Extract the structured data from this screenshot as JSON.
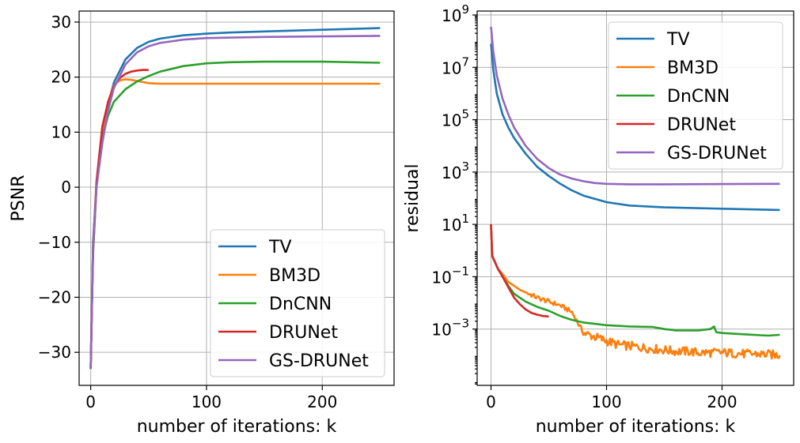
{
  "chart_data": [
    {
      "type": "line",
      "xlabel": "number of iterations: k",
      "ylabel": "PSNR",
      "xlim": [
        -10,
        262
      ],
      "ylim": [
        -36,
        32
      ],
      "yscale": "linear",
      "grid": true,
      "legend": "lower-right",
      "xticks": [
        0,
        100,
        200
      ],
      "yticks": [
        30,
        20,
        10,
        0,
        -10,
        -20,
        -30
      ],
      "xtick_labels": [
        "0",
        "100",
        "200"
      ],
      "ytick_labels": [
        "30",
        "20",
        "10",
        "0",
        "−10",
        "−20",
        "−30"
      ],
      "series": [
        {
          "name": "TV",
          "color": "#1f77b4",
          "x": [
            0,
            2,
            5,
            10,
            15,
            20,
            30,
            40,
            50,
            60,
            80,
            100,
            120,
            150,
            200,
            250
          ],
          "y": [
            -33,
            -10,
            0,
            9,
            15,
            19,
            23.2,
            25.3,
            26.4,
            27.0,
            27.6,
            27.9,
            28.1,
            28.3,
            28.6,
            28.9
          ]
        },
        {
          "name": "BM3D",
          "color": "#ff7f0e",
          "x": [
            0,
            2,
            5,
            10,
            15,
            20,
            25,
            30,
            35,
            40,
            45,
            50,
            60,
            80,
            100,
            150,
            200,
            250
          ],
          "y": [
            -33,
            -12,
            0,
            10,
            15.5,
            18.5,
            19.4,
            19.6,
            19.5,
            19.3,
            19.1,
            18.9,
            18.8,
            18.8,
            18.8,
            18.8,
            18.8,
            18.8
          ],
          "noisy": false
        },
        {
          "name": "DnCNN",
          "color": "#2ca02c",
          "x": [
            0,
            2,
            5,
            10,
            15,
            20,
            30,
            40,
            50,
            60,
            80,
            100,
            120,
            150,
            170,
            200,
            250
          ],
          "y": [
            -33,
            -12,
            0,
            9,
            13,
            15.5,
            17.8,
            19.2,
            20.2,
            21.0,
            22.0,
            22.5,
            22.7,
            22.8,
            22.8,
            22.8,
            22.6
          ]
        },
        {
          "name": "DRUNet",
          "color": "#d62728",
          "x": [
            0,
            2,
            5,
            10,
            15,
            20,
            25,
            30,
            35,
            40,
            45,
            50
          ],
          "y": [
            -33,
            -11,
            1,
            11,
            15.5,
            18.3,
            19.8,
            20.6,
            21.0,
            21.2,
            21.3,
            21.3
          ]
        },
        {
          "name": "GS-DRUNet",
          "color": "#9467bd",
          "x": [
            0,
            2,
            5,
            10,
            15,
            20,
            30,
            40,
            50,
            60,
            80,
            100,
            150,
            200,
            250
          ],
          "y": [
            -33,
            -11,
            0,
            8,
            14,
            18,
            22.3,
            24.5,
            25.6,
            26.2,
            26.8,
            27.1,
            27.3,
            27.4,
            27.5
          ]
        }
      ]
    },
    {
      "type": "line",
      "xlabel": "number of iterations: k",
      "ylabel": "residual",
      "xlim": [
        -12,
        262
      ],
      "ylim_log10": [
        -5.15,
        9.15
      ],
      "yscale": "log",
      "grid": true,
      "legend": "upper-right",
      "xticks": [
        0,
        100,
        200
      ],
      "xtick_labels": [
        "0",
        "100",
        "200"
      ],
      "ytick_exponents": [
        9,
        7,
        5,
        3,
        1,
        -1,
        -3
      ],
      "ytick_base": "10",
      "series": [
        {
          "name": "TV",
          "color": "#1f77b4",
          "x": [
            0,
            2,
            5,
            10,
            15,
            20,
            30,
            40,
            50,
            60,
            70,
            80,
            100,
            120,
            150,
            200,
            250
          ],
          "log10y": [
            7.9,
            6.9,
            6.0,
            5.2,
            4.7,
            4.3,
            3.7,
            3.2,
            2.85,
            2.55,
            2.3,
            2.1,
            1.85,
            1.72,
            1.65,
            1.6,
            1.55
          ]
        },
        {
          "name": "BM3D",
          "color": "#ff7f0e",
          "x": [
            0,
            1,
            2,
            4,
            6,
            10,
            15,
            20,
            25,
            30,
            40,
            50,
            60,
            70,
            80,
            90,
            100,
            110,
            120,
            130,
            140,
            150,
            160,
            170,
            180,
            190,
            200,
            210,
            220,
            230,
            240,
            250
          ],
          "log10y": [
            1.0,
            -0.2,
            -0.3,
            -0.5,
            -0.7,
            -0.9,
            -1.2,
            -1.35,
            -1.5,
            -1.6,
            -1.8,
            -1.95,
            -2.1,
            -2.35,
            -3.15,
            -3.3,
            -3.45,
            -3.6,
            -3.65,
            -3.7,
            -3.75,
            -3.8,
            -3.85,
            -3.85,
            -3.9,
            -3.9,
            -3.9,
            -3.92,
            -3.95,
            -3.95,
            -3.97,
            -4.0
          ],
          "noisy": true
        },
        {
          "name": "DnCNN",
          "color": "#2ca02c",
          "x": [
            0,
            1,
            2,
            4,
            6,
            10,
            15,
            20,
            30,
            40,
            50,
            60,
            70,
            80,
            90,
            100,
            120,
            140,
            150,
            160,
            180,
            190,
            193,
            195,
            200,
            220,
            240,
            250
          ],
          "log10y": [
            1.0,
            -0.2,
            -0.3,
            -0.5,
            -0.7,
            -1.0,
            -1.35,
            -1.65,
            -1.95,
            -2.15,
            -2.3,
            -2.5,
            -2.65,
            -2.75,
            -2.8,
            -2.85,
            -2.9,
            -2.92,
            -3.0,
            -3.05,
            -3.05,
            -3.0,
            -2.9,
            -3.12,
            -3.15,
            -3.2,
            -3.25,
            -3.22
          ]
        },
        {
          "name": "DRUNet",
          "color": "#d62728",
          "x": [
            0,
            1,
            2,
            4,
            6,
            10,
            15,
            20,
            25,
            30,
            35,
            40,
            45,
            50
          ],
          "log10y": [
            1.0,
            -0.2,
            -0.3,
            -0.5,
            -0.7,
            -1.0,
            -1.4,
            -1.8,
            -2.05,
            -2.25,
            -2.38,
            -2.45,
            -2.5,
            -2.52
          ]
        },
        {
          "name": "GS-DRUNet",
          "color": "#9467bd",
          "x": [
            0,
            2,
            5,
            10,
            15,
            20,
            30,
            40,
            50,
            60,
            70,
            80,
            90,
            100,
            120,
            150,
            200,
            250
          ],
          "log10y": [
            8.55,
            7.6,
            6.7,
            5.8,
            5.2,
            4.7,
            4.0,
            3.5,
            3.15,
            2.9,
            2.75,
            2.65,
            2.58,
            2.55,
            2.53,
            2.53,
            2.54,
            2.55
          ]
        }
      ]
    }
  ]
}
